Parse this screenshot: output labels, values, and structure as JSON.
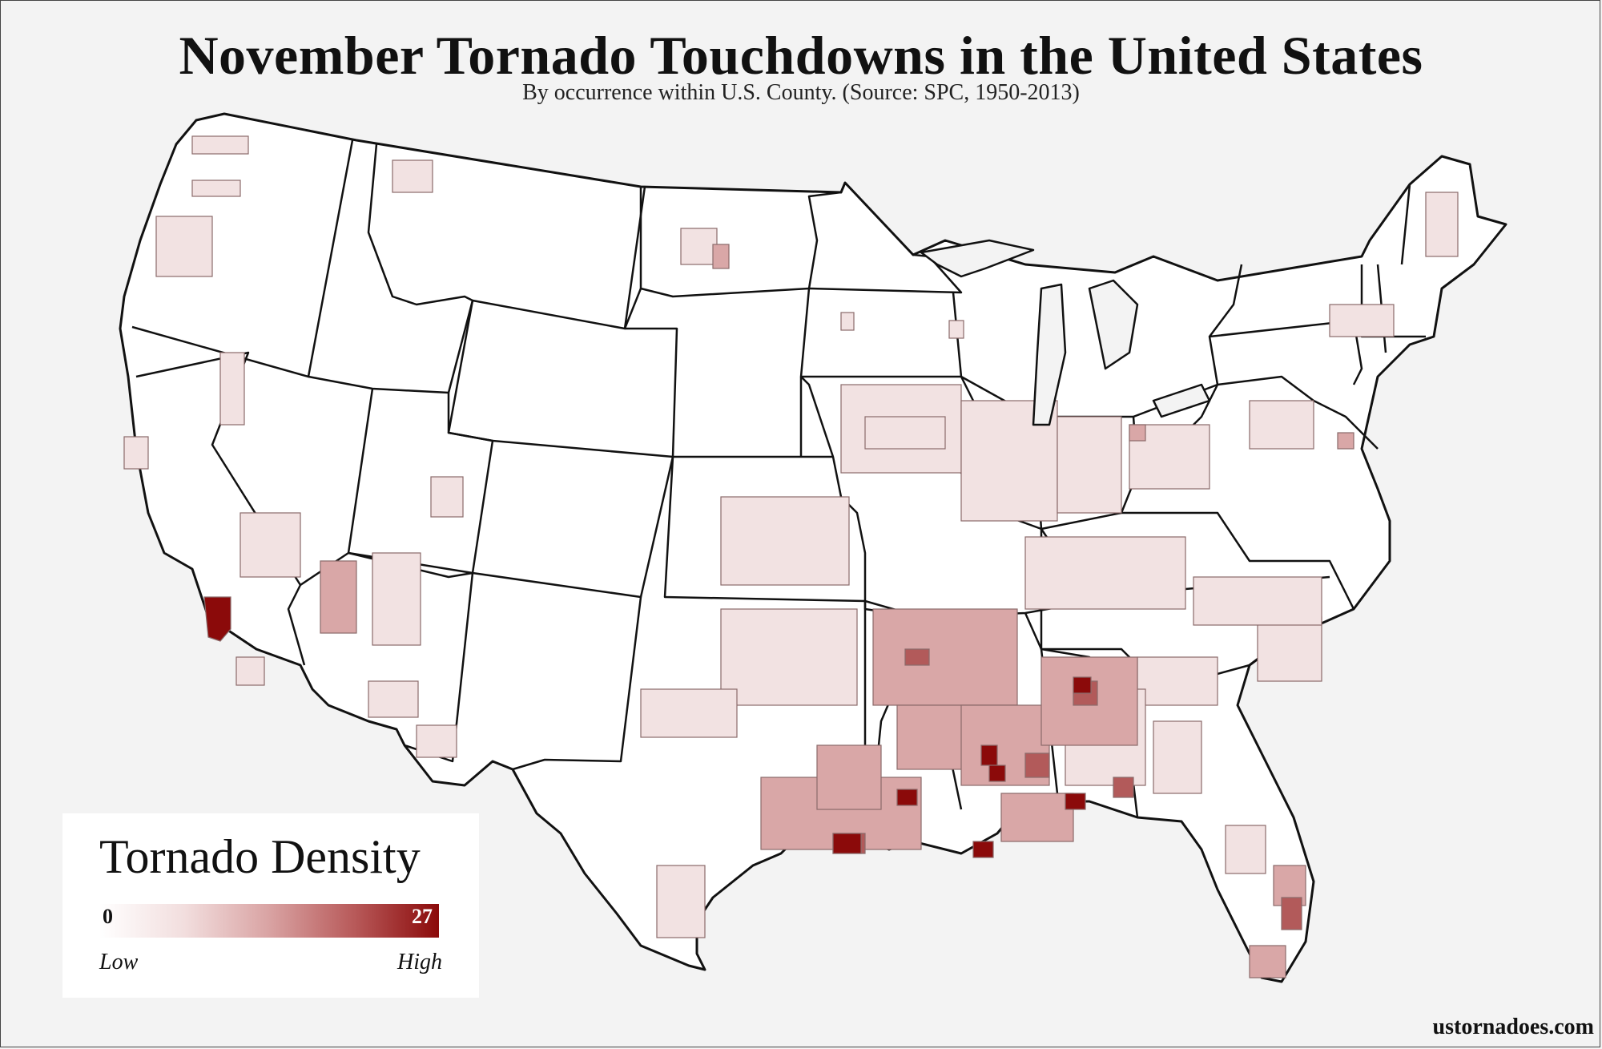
{
  "header": {
    "title": "November Tornado Touchdowns in the United States",
    "subtitle": "By occurrence within U.S. County. (Source: SPC, 1950-2013)"
  },
  "legend": {
    "title": "Tornado Density",
    "min_label": "0",
    "max_label": "27",
    "low_label": "Low",
    "high_label": "High",
    "scale_min": 0,
    "scale_max": 27,
    "colors": {
      "low": "#ffffff",
      "mid": "#d9a3a3",
      "high": "#8b0a0a"
    }
  },
  "credit": "ustornadoes.com",
  "colors": {
    "background": "#f3f3f3",
    "land": "#ffffff",
    "state_border": "#111111",
    "county_border": "#8a6a6a"
  }
}
